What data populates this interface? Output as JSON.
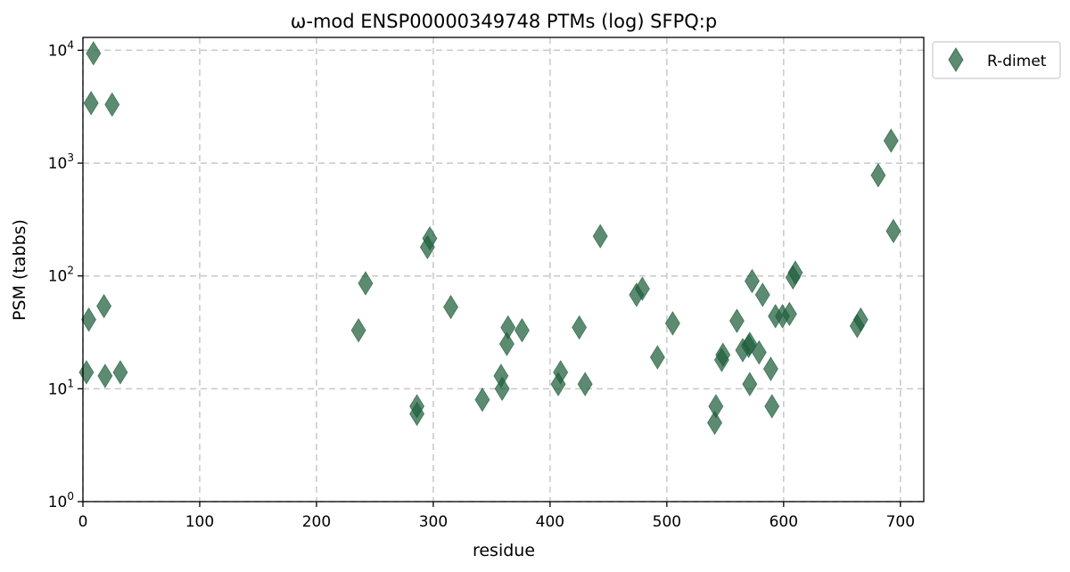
{
  "chart_data": {
    "type": "scatter",
    "title": "ω-mod ENSP00000349748 PTMs (log) SFPQ:p",
    "xlabel": "residue",
    "ylabel": "PSM (tabbs)",
    "xlim": [
      0,
      720
    ],
    "ylim": [
      1,
      13000
    ],
    "yscale": "log",
    "grid": true,
    "legend_position": "outside-top-right",
    "x_ticks": [
      {
        "value": 0,
        "label": "0"
      },
      {
        "value": 100,
        "label": "100"
      },
      {
        "value": 200,
        "label": "200"
      },
      {
        "value": 300,
        "label": "300"
      },
      {
        "value": 400,
        "label": "400"
      },
      {
        "value": 500,
        "label": "500"
      },
      {
        "value": 600,
        "label": "600"
      },
      {
        "value": 700,
        "label": "700"
      }
    ],
    "y_ticks": [
      {
        "value": 1,
        "base": "10",
        "exp": "0"
      },
      {
        "value": 10,
        "base": "10",
        "exp": "1"
      },
      {
        "value": 100,
        "base": "10",
        "exp": "2"
      },
      {
        "value": 1000,
        "base": "10",
        "exp": "3"
      },
      {
        "value": 10000,
        "base": "10",
        "exp": "4"
      }
    ],
    "series": [
      {
        "name": "R-dimet",
        "color": "#1e5e3c",
        "marker": "thin-diamond",
        "points": [
          [
            9,
            9400
          ],
          [
            7,
            3400
          ],
          [
            25,
            3300
          ],
          [
            5,
            41
          ],
          [
            18,
            54
          ],
          [
            3,
            14
          ],
          [
            19,
            13
          ],
          [
            32,
            14
          ],
          [
            236,
            33
          ],
          [
            242,
            86
          ],
          [
            286,
            7
          ],
          [
            286,
            6
          ],
          [
            295,
            180
          ],
          [
            297,
            215
          ],
          [
            315,
            53
          ],
          [
            342,
            8
          ],
          [
            358,
            13
          ],
          [
            359,
            10
          ],
          [
            363,
            25
          ],
          [
            364,
            35
          ],
          [
            376,
            33
          ],
          [
            407,
            11
          ],
          [
            409,
            14
          ],
          [
            425,
            35
          ],
          [
            430,
            11
          ],
          [
            443,
            225
          ],
          [
            474,
            68
          ],
          [
            479,
            77
          ],
          [
            492,
            19
          ],
          [
            505,
            38
          ],
          [
            541,
            5
          ],
          [
            542,
            7
          ],
          [
            547,
            18
          ],
          [
            548,
            20
          ],
          [
            560,
            40
          ],
          [
            565,
            22
          ],
          [
            570,
            24
          ],
          [
            571,
            25
          ],
          [
            571,
            11
          ],
          [
            573,
            90
          ],
          [
            579,
            21
          ],
          [
            582,
            68
          ],
          [
            589,
            15
          ],
          [
            590,
            7
          ],
          [
            593,
            44
          ],
          [
            599,
            44
          ],
          [
            605,
            46
          ],
          [
            608,
            97
          ],
          [
            610,
            107
          ],
          [
            663,
            36
          ],
          [
            666,
            41
          ],
          [
            681,
            780
          ],
          [
            692,
            1580
          ],
          [
            694,
            250
          ]
        ]
      }
    ]
  }
}
